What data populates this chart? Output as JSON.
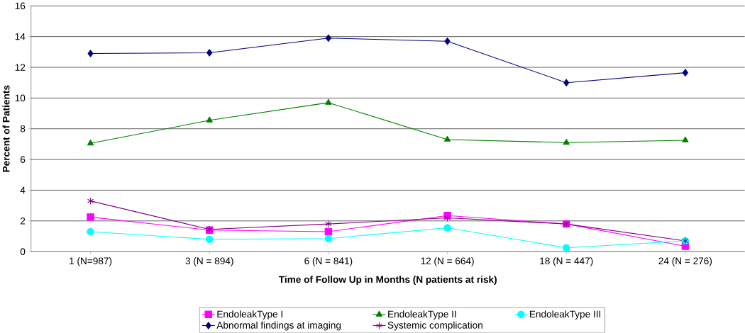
{
  "chart_data": {
    "type": "line",
    "xlabel": "Time of Follow Up in Months (N patients at risk)",
    "ylabel": "Percent of Patients",
    "categories": [
      "1 (N=987)",
      "3 (N = 894)",
      "6 (N = 841)",
      "12 (N = 664)",
      "18 (N = 447)",
      "24 (N = 276)"
    ],
    "series": [
      {
        "name": "EndoleakType I",
        "color": "#ff00ff",
        "marker": "square",
        "values": [
          2.25,
          1.4,
          1.3,
          2.35,
          1.8,
          0.35
        ]
      },
      {
        "name": "EndoleakType II",
        "color": "#008000",
        "marker": "triangle",
        "values": [
          7.05,
          8.55,
          9.7,
          7.3,
          7.1,
          7.25
        ]
      },
      {
        "name": "EndoleakType III",
        "color": "#00ffff",
        "marker": "circle",
        "values": [
          1.3,
          0.8,
          0.85,
          1.55,
          0.25,
          0.7
        ]
      },
      {
        "name": "Abnormal findings at imaging",
        "color": "#000080",
        "marker": "diamond",
        "values": [
          12.9,
          12.95,
          13.9,
          13.7,
          11.0,
          11.65
        ]
      },
      {
        "name": "Systemic complication",
        "color": "#800080",
        "marker": "cross",
        "values": [
          3.3,
          1.45,
          1.8,
          2.2,
          1.8,
          0.7
        ]
      }
    ],
    "ylim": [
      0,
      16
    ],
    "yticks": [
      0,
      2,
      4,
      6,
      8,
      10,
      12,
      14,
      16
    ],
    "grid": "y",
    "legend": "bottom",
    "line_style": "solid"
  }
}
